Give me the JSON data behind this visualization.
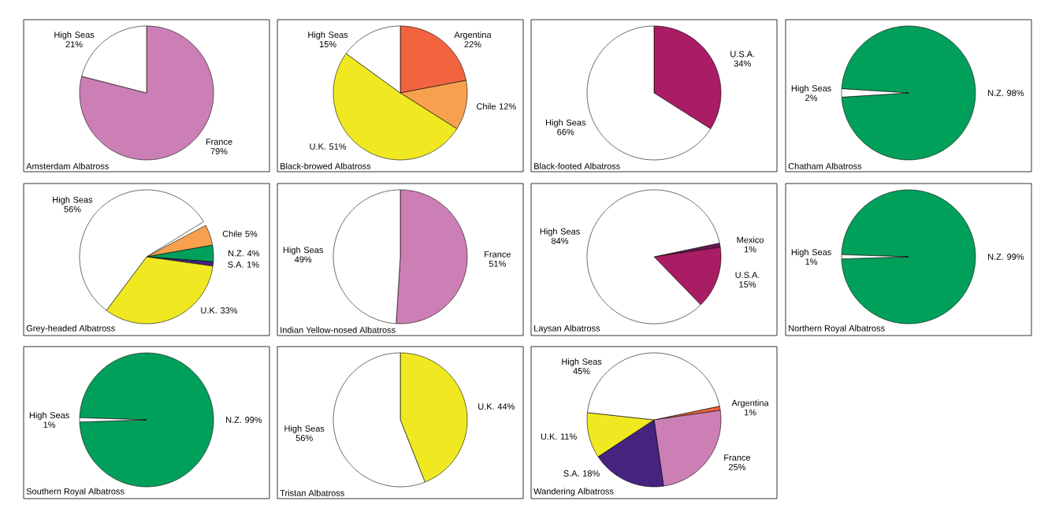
{
  "chart_data": [
    {
      "type": "pie",
      "title": "Amsterdam Albatross",
      "categories": [
        "France",
        "High Seas"
      ],
      "values": [
        79,
        21
      ],
      "value_labels": [
        "79%",
        "21%"
      ],
      "colors": [
        "#cc7fb5",
        "#ffffff"
      ]
    },
    {
      "type": "pie",
      "title": "Black-browed Albatross",
      "categories": [
        "Argentina",
        "Chile",
        "U.K.",
        "High Seas"
      ],
      "values": [
        22,
        12,
        51,
        15
      ],
      "value_labels": [
        "22%",
        "12%",
        "51%",
        "15%"
      ],
      "colors": [
        "#f2643f",
        "#f7a14f",
        "#f0e921",
        "#ffffff"
      ]
    },
    {
      "type": "pie",
      "title": "Black-footed Albatross",
      "categories": [
        "U.S.A.",
        "High Seas"
      ],
      "values": [
        34,
        66
      ],
      "value_labels": [
        "34%",
        "66%"
      ],
      "colors": [
        "#a91d64",
        "#ffffff"
      ]
    },
    {
      "type": "pie",
      "title": "Chatham Albatross",
      "categories": [
        "N.Z.",
        "High Seas"
      ],
      "values": [
        98,
        2
      ],
      "value_labels": [
        "98%",
        "2%"
      ],
      "colors": [
        "#00a05a",
        "#ffffff"
      ]
    },
    {
      "type": "pie",
      "title": "Grey-headed Albatross",
      "categories": [
        "Chile",
        "N.Z.",
        "S.A.",
        "U.K.",
        "High Seas"
      ],
      "values": [
        5,
        4,
        1,
        33,
        56
      ],
      "value_labels": [
        "5%",
        "4%",
        "1%",
        "33%",
        "56%"
      ],
      "colors": [
        "#f7a14f",
        "#00a05a",
        "#46237f",
        "#f0e921",
        "#ffffff"
      ]
    },
    {
      "type": "pie",
      "title": "Indian Yellow-nosed Albatross",
      "categories": [
        "France",
        "High Seas"
      ],
      "values": [
        51,
        49
      ],
      "value_labels": [
        "51%",
        "49%"
      ],
      "colors": [
        "#cc7fb5",
        "#ffffff"
      ]
    },
    {
      "type": "pie",
      "title": "Laysan Albatross",
      "categories": [
        "Mexico",
        "U.S.A.",
        "High Seas"
      ],
      "values": [
        1,
        15,
        84
      ],
      "value_labels": [
        "1%",
        "15%",
        "84%"
      ],
      "colors": [
        "#6a1a55",
        "#a91d64",
        "#ffffff"
      ]
    },
    {
      "type": "pie",
      "title": "Northern Royal Albatross",
      "categories": [
        "N.Z.",
        "High Seas"
      ],
      "values": [
        99,
        1
      ],
      "value_labels": [
        "99%",
        "1%"
      ],
      "colors": [
        "#00a05a",
        "#ffffff"
      ]
    },
    {
      "type": "pie",
      "title": "Southern Royal Albatross",
      "categories": [
        "N.Z.",
        "High Seas"
      ],
      "values": [
        99,
        1
      ],
      "value_labels": [
        "99%",
        "1%"
      ],
      "colors": [
        "#00a05a",
        "#ffffff"
      ]
    },
    {
      "type": "pie",
      "title": "Tristan Albatross",
      "categories": [
        "U.K.",
        "High Seas"
      ],
      "values": [
        44,
        56
      ],
      "value_labels": [
        "44%",
        "56%"
      ],
      "colors": [
        "#f0e921",
        "#ffffff"
      ]
    },
    {
      "type": "pie",
      "title": "Wandering Albatross",
      "categories": [
        "Argentina",
        "France",
        "S.A.",
        "U.K.",
        "High Seas"
      ],
      "values": [
        1,
        25,
        18,
        11,
        45
      ],
      "value_labels": [
        "1%",
        "25%",
        "18%",
        "11%",
        "45%"
      ],
      "colors": [
        "#f2643f",
        "#cc7fb5",
        "#46237f",
        "#f0e921",
        "#ffffff"
      ]
    }
  ]
}
